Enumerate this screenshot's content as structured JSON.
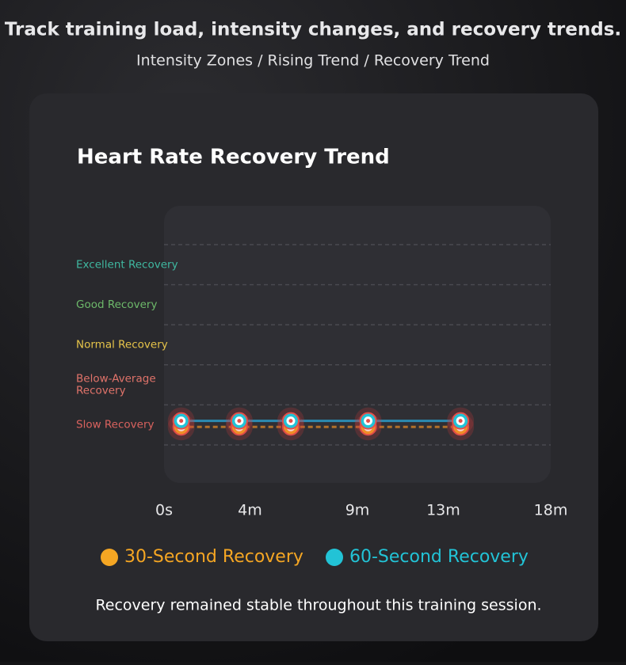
{
  "header": {
    "title": "Track training load, intensity changes, and recovery trends.",
    "subtitle": "Intensity Zones / Rising Trend / Recovery Trend"
  },
  "chart_data": {
    "type": "line",
    "title": "Heart Rate Recovery Trend",
    "zones": [
      {
        "label": "Slow Recovery",
        "color": "#d9625e"
      },
      {
        "label": "Below-Average Recovery",
        "color": "#e0736a"
      },
      {
        "label": "Normal Recovery",
        "color": "#e6c44a"
      },
      {
        "label": "Good Recovery",
        "color": "#6db96a"
      },
      {
        "label": "Excellent Recovery",
        "color": "#3fb8a0"
      }
    ],
    "x": [
      0.8,
      3.5,
      5.9,
      9.5,
      13.8
    ],
    "xlim": [
      0,
      18
    ],
    "xticks": [
      {
        "value": 0,
        "label": "0s"
      },
      {
        "value": 4,
        "label": "4m"
      },
      {
        "value": 9,
        "label": "9m"
      },
      {
        "value": 13,
        "label": "13m"
      },
      {
        "value": 18,
        "label": "18m"
      }
    ],
    "ylim": [
      0,
      5
    ],
    "yticks": [
      0,
      1,
      2,
      3,
      4,
      5
    ],
    "grid": true,
    "series": [
      {
        "name": "30-Second Recovery",
        "color": "#f5a623",
        "values": [
          0.45,
          0.45,
          0.45,
          0.45,
          0.45
        ]
      },
      {
        "name": "60-Second Recovery",
        "color": "#22c3d6",
        "values": [
          0.6,
          0.6,
          0.6,
          0.6,
          0.6
        ]
      }
    ],
    "note": "Recovery remained stable throughout this training session."
  }
}
